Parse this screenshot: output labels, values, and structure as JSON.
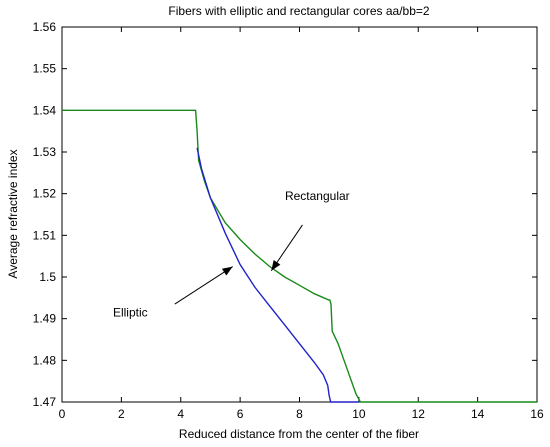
{
  "chart_data": {
    "type": "line",
    "title": "Fibers with elliptic and rectangular cores aa/bb=2",
    "xlabel": "Reduced distance from the center of the fiber",
    "ylabel": "Average refractive index",
    "xlim": [
      0,
      16
    ],
    "ylim": [
      1.47,
      1.56
    ],
    "x_ticks": [
      0,
      2,
      4,
      6,
      8,
      10,
      12,
      14,
      16
    ],
    "y_ticks": [
      1.47,
      1.48,
      1.49,
      1.5,
      1.51,
      1.52,
      1.53,
      1.54,
      1.55,
      1.56
    ],
    "x_tick_labels": [
      "0",
      "2",
      "4",
      "6",
      "8",
      "10",
      "12",
      "14",
      "16"
    ],
    "y_tick_labels": [
      "1.47",
      "1.48",
      "1.49",
      "1.5",
      "1.51",
      "1.52",
      "1.53",
      "1.54",
      "1.55",
      "1.56"
    ],
    "grid": false,
    "series": [
      {
        "name": "Rectangular",
        "color": "#1a8a1a",
        "points": [
          [
            0,
            1.54
          ],
          [
            4.5,
            1.54
          ],
          [
            4.55,
            1.535
          ],
          [
            4.6,
            1.528
          ],
          [
            4.8,
            1.523
          ],
          [
            5.0,
            1.519
          ],
          [
            5.5,
            1.513
          ],
          [
            6.0,
            1.509
          ],
          [
            6.5,
            1.5055
          ],
          [
            7.0,
            1.5025
          ],
          [
            7.5,
            1.5
          ],
          [
            8.0,
            1.498
          ],
          [
            8.5,
            1.496
          ],
          [
            8.98,
            1.4945
          ],
          [
            9.02,
            1.4945
          ],
          [
            9.06,
            1.4935
          ],
          [
            9.1,
            1.487
          ],
          [
            9.3,
            1.484
          ],
          [
            9.6,
            1.478
          ],
          [
            9.9,
            1.472
          ],
          [
            10.05,
            1.47
          ],
          [
            16,
            1.47
          ]
        ]
      },
      {
        "name": "Elliptic",
        "color": "#2222cc",
        "points": [
          [
            4.55,
            1.531
          ],
          [
            4.7,
            1.526
          ],
          [
            5.0,
            1.519
          ],
          [
            5.5,
            1.5105
          ],
          [
            6.0,
            1.503
          ],
          [
            6.5,
            1.4975
          ],
          [
            7.0,
            1.493
          ],
          [
            7.5,
            1.4885
          ],
          [
            8.0,
            1.484
          ],
          [
            8.5,
            1.4795
          ],
          [
            8.8,
            1.4765
          ],
          [
            8.95,
            1.474
          ],
          [
            9.0,
            1.4715
          ],
          [
            9.05,
            1.47
          ],
          [
            10,
            1.47
          ]
        ]
      }
    ],
    "annotations": [
      {
        "text": "Rectangular",
        "at": [
          8.6,
          1.5185
        ],
        "arrow_from": [
          8.1,
          1.5125
        ],
        "arrow_to": [
          7.05,
          1.5015
        ]
      },
      {
        "text": "Elliptic",
        "at": [
          2.3,
          1.4905
        ],
        "arrow_from": [
          3.8,
          1.4935
        ],
        "arrow_to": [
          5.75,
          1.5025
        ]
      }
    ]
  }
}
